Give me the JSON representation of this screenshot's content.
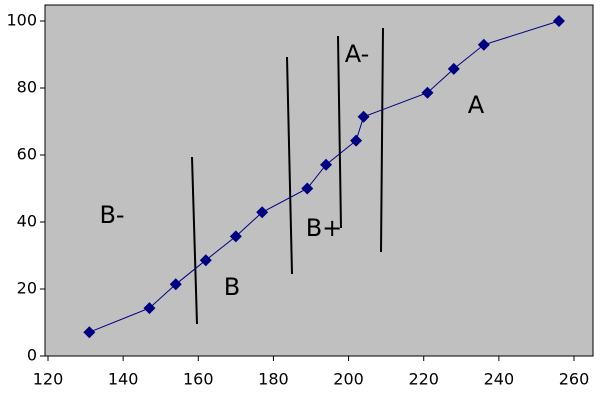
{
  "chart_data": {
    "type": "line",
    "x": [
      131,
      147,
      154,
      162,
      170,
      177,
      189,
      194,
      202,
      204,
      221,
      228,
      236,
      256
    ],
    "series": [
      {
        "color": "#000080",
        "values": [
          7.1,
          14.3,
          21.4,
          28.6,
          35.7,
          42.9,
          50,
          57.1,
          64.3,
          71.4,
          78.6,
          85.7,
          92.9,
          100
        ]
      }
    ],
    "xlim": [
      120,
      260
    ],
    "xticks": [
      120,
      140,
      160,
      180,
      200,
      220,
      240,
      260
    ],
    "ylim": [
      0,
      100
    ],
    "yticks": [
      0,
      20,
      40,
      60,
      80,
      100
    ],
    "annotations": [
      "B-",
      "B",
      "B+",
      "A-",
      "A"
    ]
  }
}
